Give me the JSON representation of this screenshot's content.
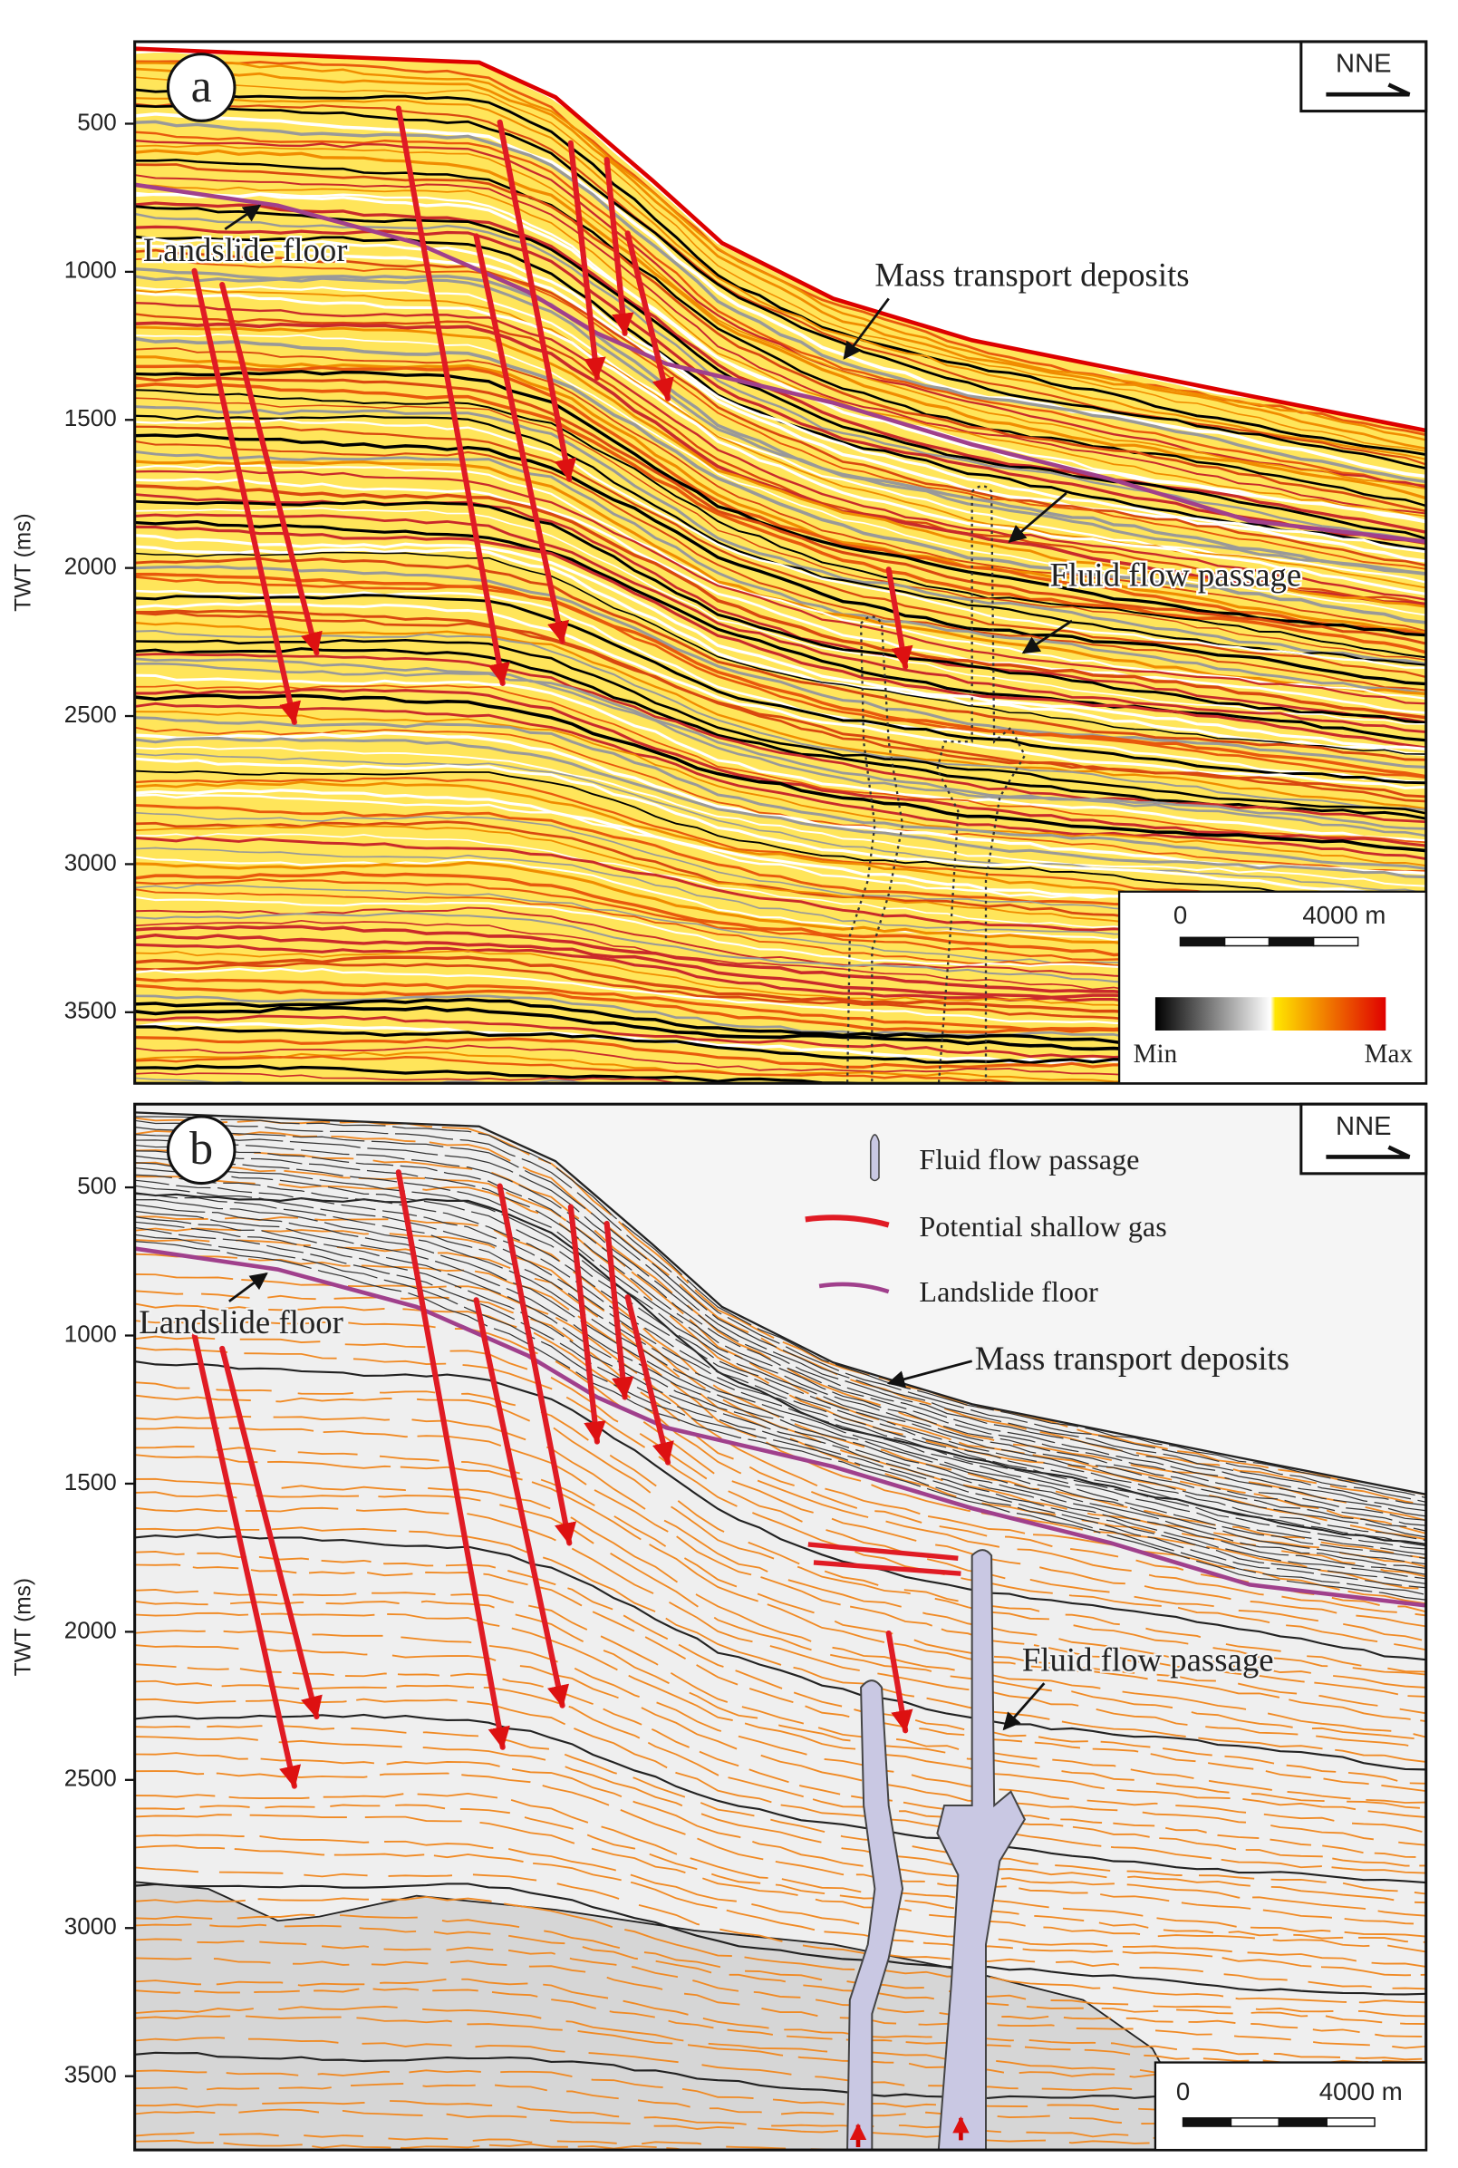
{
  "panels": [
    {
      "label": "a",
      "direction": "NNE",
      "y_axis_label": "TWT (ms)",
      "ylim": [
        223,
        3740
      ],
      "yticks": [
        500,
        1000,
        1500,
        2000,
        2500,
        3000,
        3500
      ],
      "annotations": [
        "Landslide floor",
        "Mass transport deposits",
        "Fluid flow passage"
      ],
      "scale_bar": {
        "start": "0",
        "end": "4000 m"
      },
      "color_bar": {
        "min": "Min",
        "max": "Max"
      }
    },
    {
      "label": "b",
      "direction": "NNE",
      "y_axis_label": "TWT (ms)",
      "ylim": [
        219,
        3749
      ],
      "yticks": [
        500,
        1000,
        1500,
        2000,
        2500,
        3000,
        3500
      ],
      "legend": [
        "Fluid flow passage",
        "Potential shallow gas",
        "Landslide floor"
      ],
      "annotations": [
        "Landslide floor",
        "Mass transport deposits",
        "Fluid flow passage"
      ],
      "scale_bar": {
        "start": "0",
        "end": "4000 m"
      }
    }
  ]
}
